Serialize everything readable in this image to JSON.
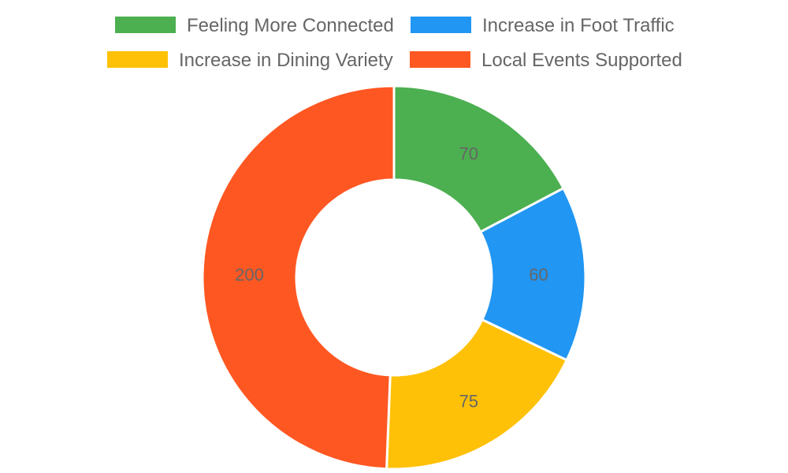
{
  "chart_data": {
    "type": "pie",
    "variant": "doughnut",
    "categories": [
      "Feeling More Connected",
      "Increase in Foot Traffic",
      "Increase in Dining Variety",
      "Local Events Supported"
    ],
    "values": [
      70,
      60,
      75,
      200
    ],
    "colors": [
      "#4caf50",
      "#2196f3",
      "#ffc107",
      "#ff5722"
    ],
    "legend": {
      "position": "top",
      "items": [
        {
          "label": "Feeling More Connected",
          "color": "#4caf50"
        },
        {
          "label": "Increase in Foot Traffic",
          "color": "#2196f3"
        },
        {
          "label": "Increase in Dining Variety",
          "color": "#ffc107"
        },
        {
          "label": "Local Events Supported",
          "color": "#ff5722"
        }
      ]
    },
    "data_labels": [
      "70",
      "60",
      "75",
      "200"
    ]
  }
}
